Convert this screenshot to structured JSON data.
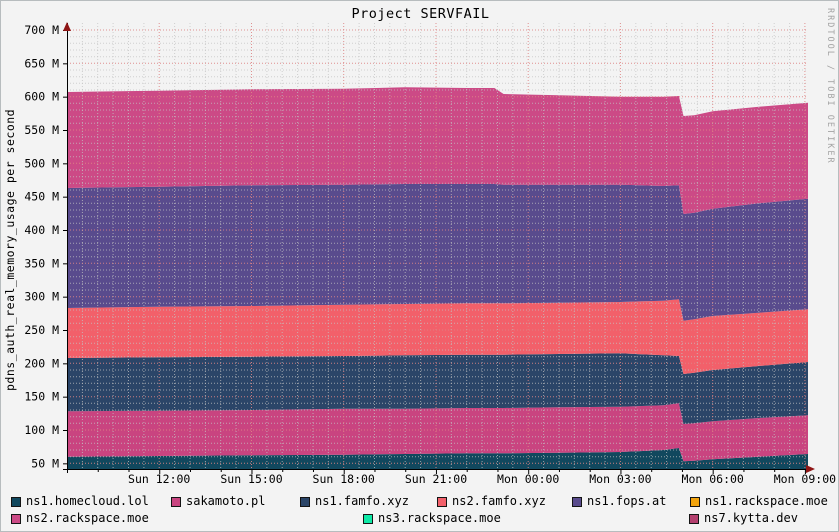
{
  "header": {
    "title": "Project SERVFAIL"
  },
  "attribution": "RRDTOOL / TOBI OETIKER",
  "axes": {
    "y_label": "pdns_auth_real_memory_usage per second",
    "y_ticks": [
      {
        "value": 700,
        "label": "700 M"
      },
      {
        "value": 650,
        "label": "650 M"
      },
      {
        "value": 600,
        "label": "600 M"
      },
      {
        "value": 550,
        "label": "550 M"
      },
      {
        "value": 500,
        "label": "500 M"
      },
      {
        "value": 450,
        "label": "450 M"
      },
      {
        "value": 400,
        "label": "400 M"
      },
      {
        "value": 350,
        "label": "350 M"
      },
      {
        "value": 300,
        "label": "300 M"
      },
      {
        "value": 250,
        "label": "250 M"
      },
      {
        "value": 200,
        "label": "200 M"
      },
      {
        "value": 150,
        "label": "150 M"
      },
      {
        "value": 100,
        "label": "100 M"
      },
      {
        "value": 50,
        "label": "50 M"
      }
    ],
    "x_ticks": [
      {
        "hour": 3,
        "label": "Sun 12:00"
      },
      {
        "hour": 6,
        "label": "Sun 15:00"
      },
      {
        "hour": 9,
        "label": "Sun 18:00"
      },
      {
        "hour": 12,
        "label": "Sun 21:00"
      },
      {
        "hour": 15,
        "label": "Mon 00:00"
      },
      {
        "hour": 18,
        "label": "Mon 03:00"
      },
      {
        "hour": 21,
        "label": "Mon 06:00"
      },
      {
        "hour": 24,
        "label": "Mon 09:00"
      }
    ]
  },
  "legend": {
    "rows": [
      [
        {
          "label": "ns1.homecloud.lol",
          "color": "#11485e"
        },
        {
          "label": "sakamoto.pl",
          "color": "#c94480"
        },
        {
          "label": "ns1.famfo.xyz",
          "color": "#2b4568"
        },
        {
          "label": "ns2.famfo.xyz",
          "color": "#f2606a"
        },
        {
          "label": "ns1.fops.at",
          "color": "#594b8d"
        },
        {
          "label": "ns1.rackspace.moe",
          "color": "#f2a40e"
        }
      ],
      [
        {
          "label": "ns2.rackspace.moe",
          "color": "#cc4a86"
        },
        {
          "label": "ns3.rackspace.moe",
          "color": "#0ee9a6"
        },
        {
          "label": "ns7.kytta.dev",
          "color": "#b4406f"
        }
      ]
    ]
  },
  "chart_data": {
    "type": "area",
    "stacked": true,
    "title": "Project SERVFAIL",
    "ylabel": "pdns_auth_real_memory_usage per second",
    "unit_suffix": "M",
    "ylim": [
      41.5,
      710.5
    ],
    "x_hours_range": [
      0,
      24.1
    ],
    "grid": {
      "y_major_step": 50,
      "y_minor_step": 10,
      "x_major_step_hours": 3,
      "x_minor_step_hours": 0.5,
      "major_color": "#dd8585",
      "minor_color": "#c3c3c3"
    },
    "legend_position": "bottom",
    "x_hours": [
      0,
      3,
      6,
      9,
      11,
      13,
      13.9,
      14.2,
      16,
      18,
      19.4,
      19.9,
      20.05,
      20.4,
      21,
      22.5,
      24.1
    ],
    "series": [
      {
        "name": "ns1.homecloud.lol",
        "color": "#11485e",
        "values": [
          60,
          61,
          62,
          63,
          64,
          65,
          65,
          65,
          66,
          67,
          70,
          73,
          53,
          54,
          56,
          60,
          64
        ]
      },
      {
        "name": "sakamoto.pl",
        "color": "#c94480",
        "values": [
          68,
          68,
          68,
          69,
          68,
          68,
          68,
          68,
          68,
          68,
          67,
          67,
          56,
          56,
          57,
          58,
          58
        ]
      },
      {
        "name": "ns1.famfo.xyz",
        "color": "#2b4568",
        "values": [
          80,
          80,
          80,
          79,
          80,
          80,
          80,
          80,
          80,
          80,
          75,
          71,
          75,
          76,
          77,
          78,
          80
        ]
      },
      {
        "name": "ns2.famfo.xyz",
        "color": "#f2606a",
        "values": [
          75,
          76,
          76,
          77,
          77,
          77,
          77,
          77,
          77,
          77,
          82,
          85,
          80,
          80,
          81,
          80,
          79
        ]
      },
      {
        "name": "ns1.fops.at",
        "color": "#594b8d",
        "values": [
          180,
          180,
          181,
          180,
          180,
          179,
          179,
          178,
          177,
          176,
          172,
          171,
          160,
          160,
          161,
          164,
          166
        ]
      },
      {
        "name": "ns1.rackspace.moe",
        "color": "#f2a40e",
        "values": [
          0,
          0,
          0,
          0,
          0,
          0,
          0,
          0,
          0,
          0,
          0,
          0,
          0,
          0,
          0,
          0,
          0
        ]
      },
      {
        "name": "ns2.rackspace.moe",
        "color": "#cc4a86",
        "values": [
          144,
          144,
          144,
          144,
          145,
          144,
          144,
          136,
          134,
          132,
          134,
          134,
          147,
          146,
          146,
          145,
          144
        ]
      },
      {
        "name": "ns3.rackspace.moe",
        "color": "#0ee9a6",
        "values": [
          0,
          0,
          0,
          0,
          0,
          0,
          0,
          0,
          0,
          0,
          0,
          0,
          0,
          0,
          0,
          0,
          0
        ]
      },
      {
        "name": "ns7.kytta.dev",
        "color": "#b4406f",
        "values": [
          0,
          0,
          0,
          0,
          0,
          0,
          0,
          0,
          0,
          0,
          0,
          0,
          0,
          0,
          0,
          0,
          0
        ]
      }
    ]
  }
}
